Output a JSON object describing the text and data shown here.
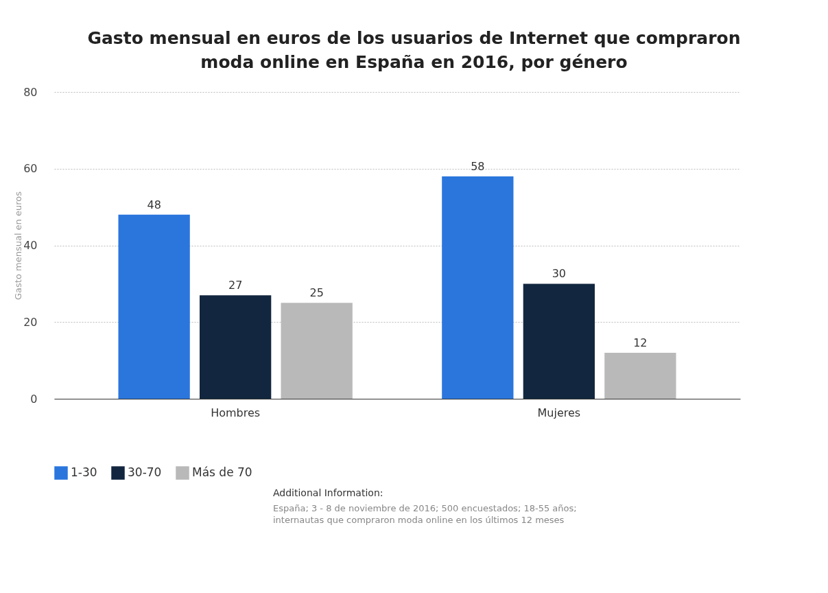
{
  "chart_data": {
    "type": "bar",
    "title": "Gasto mensual en euros de los usuarios de Internet que compraron moda online en España en 2016, por género",
    "ylabel": "Gasto mensual en euros",
    "categories": [
      "Hombres",
      "Mujeres"
    ],
    "series": [
      {
        "name": "1-30",
        "color": "#2a76dd",
        "values": [
          48,
          58
        ]
      },
      {
        "name": "30-70",
        "color": "#12263f",
        "values": [
          27,
          30
        ]
      },
      {
        "name": "Más de 70",
        "color": "#b9b9b9",
        "values": [
          25,
          12
        ]
      }
    ],
    "ylim": [
      0,
      80
    ],
    "yticks": [
      0,
      20,
      40,
      60,
      80
    ],
    "grid": "y",
    "legend": "bottom",
    "data_labels": true,
    "annotations": [
      "Additional Information:",
      "España; 3 - 8 de noviembre de 2016; 500 encuestados; 18-55 años; internautas que compraron moda online en los últimos 12 meses"
    ]
  }
}
